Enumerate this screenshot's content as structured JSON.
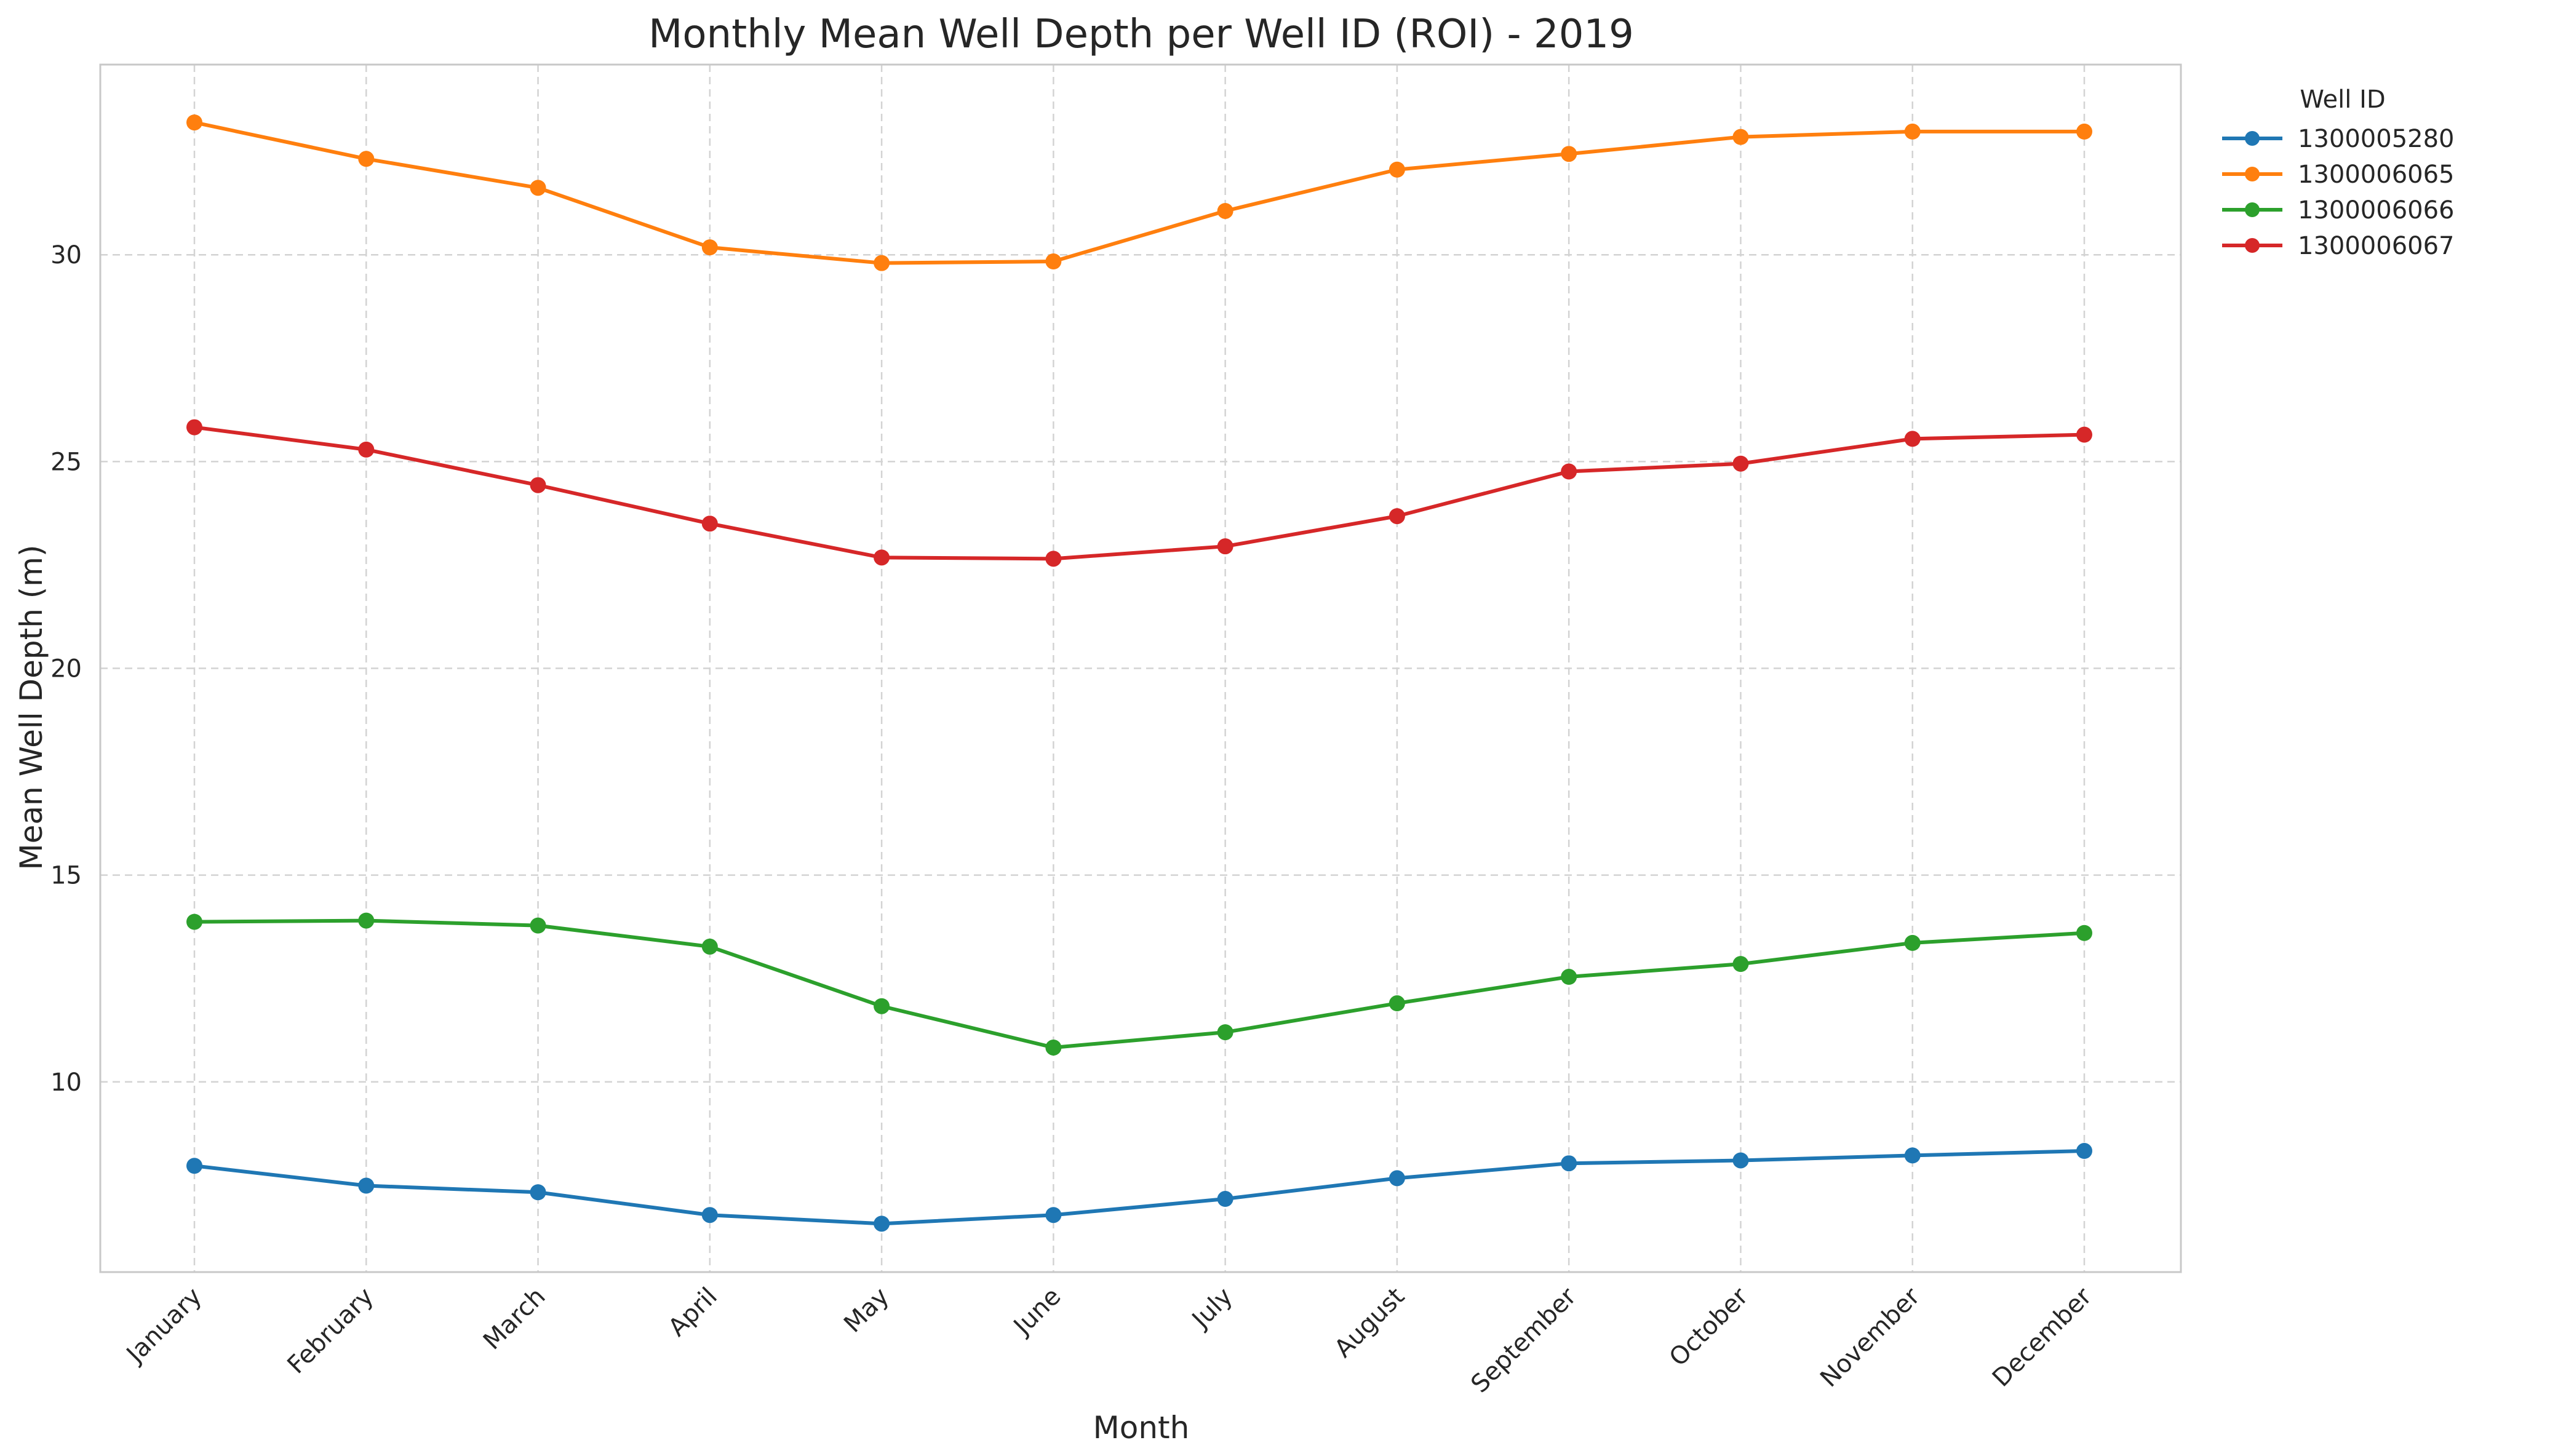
{
  "chart_data": {
    "type": "line",
    "title": "Monthly Mean Well Depth per Well ID (ROI) - 2019",
    "xlabel": "Month",
    "ylabel": "Mean Well Depth (m)",
    "categories": [
      "January",
      "February",
      "March",
      "April",
      "May",
      "June",
      "July",
      "August",
      "September",
      "October",
      "November",
      "December"
    ],
    "ylim": [
      5.4,
      34.6
    ],
    "yticks": [
      10,
      15,
      20,
      25,
      30
    ],
    "grid": true,
    "legend": {
      "title": "Well ID",
      "placement": "outside-top-right"
    },
    "series": [
      {
        "name": "1300005280",
        "color": "#1f77b4",
        "values": [
          7.97,
          7.49,
          7.33,
          6.78,
          6.57,
          6.78,
          7.17,
          7.67,
          8.03,
          8.1,
          8.22,
          8.33
        ]
      },
      {
        "name": "1300006065",
        "color": "#ff7f0e",
        "values": [
          33.2,
          32.32,
          31.62,
          30.18,
          29.8,
          29.84,
          31.06,
          32.06,
          32.44,
          32.85,
          32.98,
          32.98
        ]
      },
      {
        "name": "1300006066",
        "color": "#2ca02c",
        "values": [
          13.87,
          13.9,
          13.78,
          13.27,
          11.83,
          10.83,
          11.2,
          11.9,
          12.54,
          12.85,
          13.36,
          13.6
        ]
      },
      {
        "name": "1300006067",
        "color": "#d62728",
        "values": [
          25.83,
          25.29,
          24.43,
          23.5,
          22.68,
          22.65,
          22.95,
          23.68,
          24.76,
          24.95,
          25.55,
          25.65
        ]
      }
    ]
  }
}
